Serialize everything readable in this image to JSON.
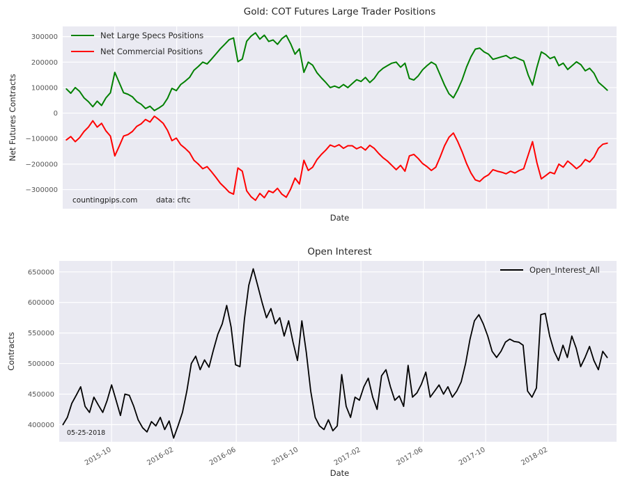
{
  "colors": {
    "figure_bg": "#ffffff",
    "plot_bg": "#eaeaf2",
    "grid": "#ffffff",
    "tick_label": "#555555",
    "text": "#262626",
    "specs_green": "#008000",
    "commercials_red": "#ff0000",
    "open_interest_black": "#000000"
  },
  "chart_data": [
    {
      "type": "line",
      "title": "Gold: COT Futures Large Trader Positions",
      "xlabel": "Date",
      "ylabel": "Net Futures Contracts",
      "xlim": [
        2015.47,
        2018.45
      ],
      "ylim": [
        -375000,
        340000
      ],
      "x_start": 2015.49,
      "x_end": 2018.4,
      "grid": true,
      "legend_position": "upper-left",
      "xticks": {
        "values": [
          2015.75,
          2016.0833,
          2016.4167,
          2016.75,
          2017.0833,
          2017.4167,
          2017.75,
          2018.0833
        ],
        "labels": [
          "2015-10",
          "2016-02",
          "2016-06",
          "2016-10",
          "2017-02",
          "2017-06",
          "2017-10",
          "2018-02"
        ],
        "show_labels": false
      },
      "yticks": {
        "values": [
          300000,
          200000,
          100000,
          0,
          -100000,
          -200000,
          -300000
        ],
        "labels": [
          "300000",
          "200000",
          "100000",
          "0",
          "−100000",
          "−200000",
          "−300000"
        ]
      },
      "series": [
        {
          "name": "Net Large Specs Positions",
          "color": "#008000",
          "width": 2,
          "values": [
            95000,
            78000,
            100000,
            85000,
            60000,
            45000,
            25000,
            47000,
            30000,
            60000,
            80000,
            160000,
            120000,
            80000,
            74000,
            64000,
            45000,
            35000,
            18000,
            27000,
            10000,
            20000,
            32000,
            58000,
            97000,
            88000,
            112000,
            125000,
            140000,
            168000,
            183000,
            200000,
            193000,
            212000,
            232000,
            252000,
            270000,
            288000,
            295000,
            202000,
            212000,
            282000,
            302000,
            315000,
            290000,
            306000,
            281000,
            287000,
            270000,
            292000,
            305000,
            272000,
            231000,
            252000,
            160000,
            200000,
            188000,
            158000,
            138000,
            120000,
            100000,
            106000,
            99000,
            112000,
            100000,
            116000,
            131000,
            124000,
            140000,
            120000,
            136000,
            161000,
            176000,
            186000,
            196000,
            200000,
            180000,
            196000,
            136000,
            130000,
            146000,
            170000,
            186000,
            200000,
            190000,
            150000,
            110000,
            76000,
            60000,
            92000,
            131000,
            181000,
            221000,
            251000,
            255000,
            240000,
            231000,
            211000,
            216000,
            221000,
            226000,
            214000,
            220000,
            212000,
            205000,
            150000,
            110000,
            180000,
            240000,
            230000,
            214000,
            221000,
            186000,
            196000,
            171000,
            186000,
            201000,
            190000,
            166000,
            176000,
            156000,
            121000,
            106000,
            90000
          ]
        },
        {
          "name": "Net Commercial Positions",
          "color": "#ff0000",
          "width": 2,
          "values": [
            -105000,
            -92000,
            -112000,
            -96000,
            -72000,
            -55000,
            -30000,
            -55000,
            -40000,
            -70000,
            -90000,
            -168000,
            -130000,
            -90000,
            -84000,
            -72000,
            -52000,
            -42000,
            -25000,
            -35000,
            -12000,
            -25000,
            -40000,
            -68000,
            -108000,
            -98000,
            -124000,
            -138000,
            -155000,
            -185000,
            -200000,
            -218000,
            -210000,
            -230000,
            -252000,
            -275000,
            -292000,
            -310000,
            -318000,
            -215000,
            -228000,
            -305000,
            -328000,
            -342000,
            -315000,
            -332000,
            -305000,
            -312000,
            -295000,
            -318000,
            -330000,
            -298000,
            -255000,
            -278000,
            -185000,
            -225000,
            -212000,
            -182000,
            -162000,
            -145000,
            -125000,
            -132000,
            -124000,
            -138000,
            -128000,
            -128000,
            -140000,
            -132000,
            -145000,
            -126000,
            -138000,
            -158000,
            -175000,
            -188000,
            -205000,
            -222000,
            -205000,
            -228000,
            -168000,
            -162000,
            -178000,
            -198000,
            -210000,
            -225000,
            -212000,
            -172000,
            -128000,
            -95000,
            -78000,
            -112000,
            -152000,
            -198000,
            -235000,
            -262000,
            -268000,
            -252000,
            -242000,
            -222000,
            -228000,
            -232000,
            -238000,
            -228000,
            -235000,
            -225000,
            -218000,
            -165000,
            -112000,
            -195000,
            -258000,
            -245000,
            -232000,
            -238000,
            -200000,
            -212000,
            -188000,
            -202000,
            -218000,
            -205000,
            -182000,
            -192000,
            -172000,
            -138000,
            -122000,
            -118000
          ]
        }
      ],
      "annotations": [
        {
          "text": "countingpips.com"
        },
        {
          "text": "data: cftc"
        }
      ]
    },
    {
      "type": "line",
      "title": "Open Interest",
      "xlabel": "Date",
      "ylabel": "Contracts",
      "xlim": [
        2015.47,
        2018.45
      ],
      "ylim": [
        372000,
        668000
      ],
      "x_start": 2015.49,
      "x_end": 2018.4,
      "grid": true,
      "legend_position": "upper-right",
      "xticks": {
        "values": [
          2015.75,
          2016.0833,
          2016.4167,
          2016.75,
          2017.0833,
          2017.4167,
          2017.75,
          2018.0833
        ],
        "labels": [
          "2015-10",
          "2016-02",
          "2016-06",
          "2016-10",
          "2017-02",
          "2017-06",
          "2017-10",
          "2018-02"
        ],
        "show_labels": true
      },
      "yticks": {
        "values": [
          650000,
          600000,
          550000,
          500000,
          450000,
          400000
        ],
        "labels": [
          "650000",
          "600000",
          "550000",
          "500000",
          "450000",
          "400000"
        ]
      },
      "series": [
        {
          "name": "Open_Interest_All",
          "color": "#000000",
          "width": 1.8,
          "values": [
            400000,
            412000,
            435000,
            448000,
            462000,
            430000,
            420000,
            445000,
            432000,
            420000,
            440000,
            465000,
            440000,
            415000,
            450000,
            448000,
            430000,
            408000,
            395000,
            388000,
            405000,
            398000,
            412000,
            392000,
            406000,
            378000,
            398000,
            420000,
            455000,
            500000,
            512000,
            490000,
            506000,
            494000,
            522000,
            548000,
            565000,
            595000,
            560000,
            498000,
            495000,
            572000,
            628000,
            655000,
            628000,
            600000,
            575000,
            590000,
            565000,
            575000,
            545000,
            570000,
            535000,
            505000,
            570000,
            518000,
            455000,
            412000,
            398000,
            392000,
            408000,
            390000,
            398000,
            482000,
            430000,
            412000,
            445000,
            440000,
            462000,
            476000,
            445000,
            425000,
            480000,
            490000,
            462000,
            440000,
            447000,
            430000,
            497000,
            445000,
            452000,
            466000,
            486000,
            445000,
            455000,
            465000,
            450000,
            462000,
            445000,
            455000,
            470000,
            500000,
            540000,
            570000,
            580000,
            565000,
            545000,
            520000,
            510000,
            520000,
            535000,
            540000,
            536000,
            535000,
            530000,
            455000,
            445000,
            460000,
            580000,
            582000,
            545000,
            520000,
            505000,
            530000,
            510000,
            545000,
            525000,
            495000,
            510000,
            528000,
            505000,
            490000,
            520000,
            510000
          ]
        }
      ],
      "annotations": [
        {
          "text": "05-25-2018"
        }
      ]
    }
  ]
}
